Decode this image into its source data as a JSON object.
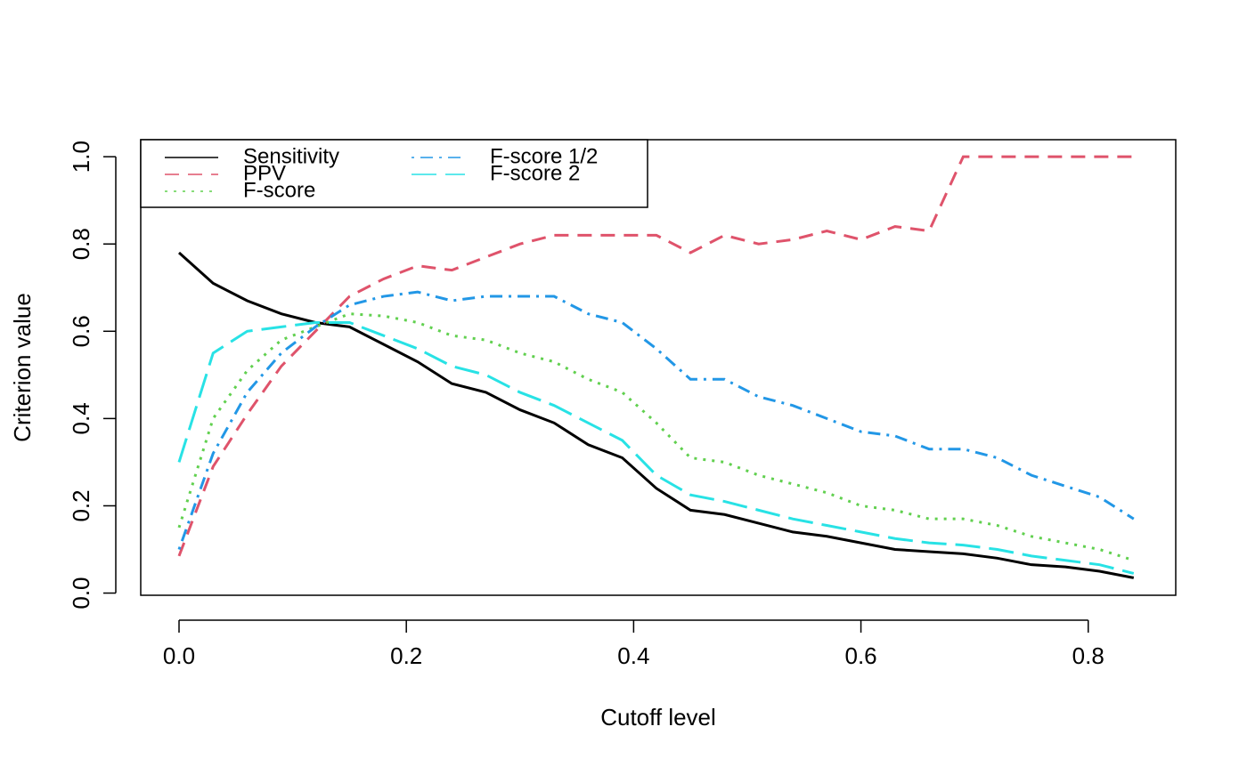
{
  "chart_data": {
    "type": "line",
    "xlabel": "Cutoff level",
    "ylabel": "Criterion value",
    "x": [
      0,
      0.03,
      0.06,
      0.09,
      0.12,
      0.15,
      0.18,
      0.21,
      0.24,
      0.27,
      0.3,
      0.33,
      0.36,
      0.39,
      0.42,
      0.45,
      0.48,
      0.51,
      0.54,
      0.57,
      0.6,
      0.63,
      0.66,
      0.69,
      0.72,
      0.75,
      0.78,
      0.81,
      0.84
    ],
    "series": [
      {
        "name": "Sensitivity",
        "color": "#000000",
        "linestyle": "solid",
        "values": [
          0.78,
          0.71,
          0.67,
          0.64,
          0.62,
          0.61,
          0.57,
          0.53,
          0.48,
          0.46,
          0.42,
          0.39,
          0.34,
          0.31,
          0.24,
          0.19,
          0.18,
          0.16,
          0.14,
          0.13,
          0.115,
          0.1,
          0.095,
          0.09,
          0.08,
          0.065,
          0.06,
          0.05,
          0.035
        ]
      },
      {
        "name": "PPV",
        "color": "#DF536B",
        "linestyle": "dashed",
        "values": [
          0.085,
          0.29,
          0.41,
          0.52,
          0.6,
          0.68,
          0.72,
          0.75,
          0.74,
          0.77,
          0.8,
          0.82,
          0.82,
          0.82,
          0.82,
          0.78,
          0.82,
          0.8,
          0.81,
          0.83,
          0.81,
          0.84,
          0.83,
          1.0,
          1.0,
          1.0,
          1.0,
          1.0,
          1.0
        ]
      },
      {
        "name": "F-score",
        "color": "#61D04F",
        "linestyle": "dotted",
        "values": [
          0.15,
          0.4,
          0.51,
          0.58,
          0.61,
          0.64,
          0.635,
          0.62,
          0.59,
          0.58,
          0.55,
          0.53,
          0.49,
          0.46,
          0.39,
          0.31,
          0.3,
          0.27,
          0.25,
          0.23,
          0.2,
          0.19,
          0.17,
          0.17,
          0.155,
          0.13,
          0.115,
          0.1,
          0.075
        ]
      },
      {
        "name": "F-score 1/2",
        "color": "#2297E6",
        "linestyle": "dotdash",
        "values": [
          0.1,
          0.32,
          0.46,
          0.55,
          0.61,
          0.66,
          0.68,
          0.69,
          0.67,
          0.68,
          0.68,
          0.68,
          0.64,
          0.62,
          0.56,
          0.49,
          0.49,
          0.45,
          0.43,
          0.4,
          0.37,
          0.36,
          0.33,
          0.33,
          0.31,
          0.27,
          0.245,
          0.22,
          0.17
        ]
      },
      {
        "name": "F-score 2",
        "color": "#28E2E5",
        "linestyle": "longdash",
        "values": [
          0.3,
          0.55,
          0.6,
          0.61,
          0.62,
          0.62,
          0.59,
          0.56,
          0.52,
          0.5,
          0.46,
          0.43,
          0.39,
          0.35,
          0.27,
          0.225,
          0.21,
          0.19,
          0.17,
          0.155,
          0.14,
          0.125,
          0.115,
          0.11,
          0.1,
          0.085,
          0.075,
          0.065,
          0.045
        ]
      }
    ],
    "xlim": [
      -0.0337,
      0.877
    ],
    "ylim": [
      -0.005,
      1.039
    ],
    "xticks": [
      {
        "value": 0,
        "label": "0.0"
      },
      0.2,
      0.4,
      0.6,
      0.8
    ],
    "yticks": [
      {
        "value": 0,
        "label": "0.0"
      },
      0.2,
      0.4,
      0.6,
      0.8,
      {
        "value": 1,
        "label": "1.0"
      }
    ],
    "legend": "topleft",
    "grid": false
  }
}
